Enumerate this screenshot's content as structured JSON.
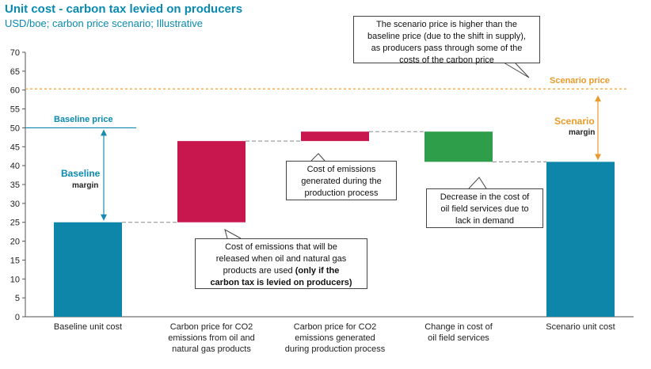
{
  "title": "Unit cost - carbon tax levied on producers",
  "subtitle": "USD/boe; carbon price scenario; Illustrative",
  "colors": {
    "accent": "#0a8ab0",
    "baseline_bar": "#0e86aa",
    "carbon_bar": "#c8174f",
    "services_bar": "#2f9e4a",
    "scenario_line": "#f0a030",
    "arrow_teal": "#1a8ab0",
    "arrow_orange": "#e89a2a"
  },
  "chart_data": {
    "type": "waterfall",
    "categories": [
      "Baseline unit cost",
      "Carbon price for CO2 emissions from oil and natural gas products",
      "Carbon price for CO2 emissions generated during production process",
      "Change in cost of oil field services",
      "Scenario unit cost"
    ],
    "bars": [
      {
        "name": "Baseline unit cost",
        "start": 0,
        "end": 25,
        "color": "#0e86aa"
      },
      {
        "name": "Carbon price for CO2 emissions from oil and natural gas products",
        "start": 25,
        "end": 46.5,
        "color": "#c8174f"
      },
      {
        "name": "Carbon price for CO2 emissions generated during production process",
        "start": 46.5,
        "end": 49,
        "color": "#c8174f"
      },
      {
        "name": "Change in cost of oil field services",
        "start": 49,
        "end": 41,
        "color": "#2f9e4a"
      },
      {
        "name": "Scenario unit cost",
        "start": 0,
        "end": 41,
        "color": "#0e86aa"
      }
    ],
    "baseline_price": 50,
    "scenario_price": 60.3,
    "ylim": [
      0,
      70
    ],
    "yticks": [
      0,
      5,
      10,
      15,
      20,
      25,
      30,
      35,
      40,
      45,
      50,
      55,
      60,
      65,
      70
    ],
    "category_labels": [
      [
        "Baseline unit cost"
      ],
      [
        "Carbon price for CO2",
        "emissions from oil and",
        "natural gas products"
      ],
      [
        "Carbon price for CO2",
        "emissions generated",
        "during production process"
      ],
      [
        "Change in cost of",
        "oil field services"
      ],
      [
        "Scenario unit cost"
      ]
    ]
  },
  "labels": {
    "baseline_price": "Baseline price",
    "scenario_price": "Scenario price",
    "baseline_margin_1": "Baseline",
    "baseline_margin_2": "margin",
    "scenario_margin_1": "Scenario",
    "scenario_margin_2": "margin"
  },
  "callouts": {
    "scenario_note": [
      "The scenario price is higher than the",
      "baseline price (due to the shift in supply),",
      "as producers pass through some of the",
      "costs of the carbon price"
    ],
    "emissions_production": [
      "Cost of emissions",
      "generated during the",
      "production process"
    ],
    "services_decrease": [
      "Decrease in the cost of",
      "oil field services due to",
      "lack in demand"
    ],
    "emissions_products_plain": [
      "Cost of emissions that will be",
      "released when oil and natural gas",
      "products are used"
    ],
    "emissions_products_bold": [
      "(only if the",
      "carbon tax is levied on producers)"
    ]
  }
}
